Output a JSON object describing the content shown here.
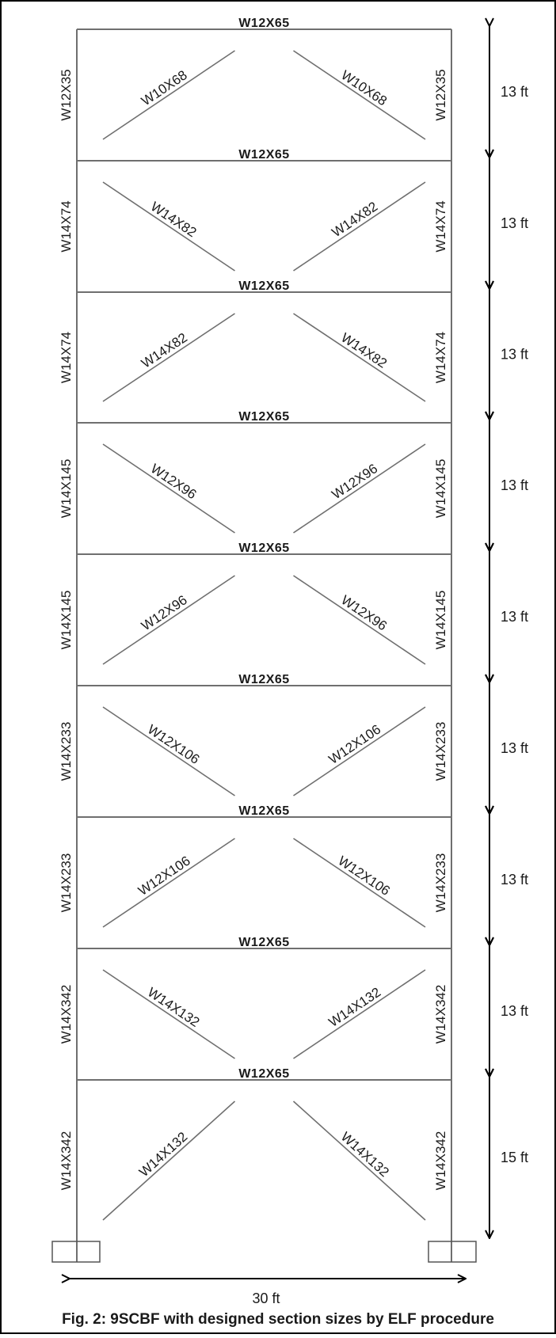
{
  "width_dimension": "30 ft",
  "caption": "Fig. 2: 9SCBF with designed section sizes by ELF procedure",
  "stories": [
    {
      "beam": "W12X65",
      "left_column": "W12X35",
      "right_column": "W12X35",
      "left_brace": "W10X68",
      "right_brace": "W10X68",
      "height": "13 ft",
      "brace_pattern": "inverted-V"
    },
    {
      "beam": "W12X65",
      "left_column": "W14X74",
      "right_column": "W14X74",
      "left_brace": "W14X82",
      "right_brace": "W14X82",
      "height": "13 ft",
      "brace_pattern": "V"
    },
    {
      "beam": "W12X65",
      "left_column": "W14X74",
      "right_column": "W14X74",
      "left_brace": "W14X82",
      "right_brace": "W14X82",
      "height": "13 ft",
      "brace_pattern": "inverted-V"
    },
    {
      "beam": "W12X65",
      "left_column": "W14X145",
      "right_column": "W14X145",
      "left_brace": "W12X96",
      "right_brace": "W12X96",
      "height": "13 ft",
      "brace_pattern": "V"
    },
    {
      "beam": "W12X65",
      "left_column": "W14X145",
      "right_column": "W14X145",
      "left_brace": "W12X96",
      "right_brace": "W12X96",
      "height": "13 ft",
      "brace_pattern": "inverted-V"
    },
    {
      "beam": "W12X65",
      "left_column": "W14X233",
      "right_column": "W14X233",
      "left_brace": "W12X106",
      "right_brace": "W12X106",
      "height": "13 ft",
      "brace_pattern": "V"
    },
    {
      "beam": "W12X65",
      "left_column": "W14X233",
      "right_column": "W14X233",
      "left_brace": "W12X106",
      "right_brace": "W12X106",
      "height": "13 ft",
      "brace_pattern": "inverted-V"
    },
    {
      "beam": "W12X65",
      "left_column": "W14X342",
      "right_column": "W14X342",
      "left_brace": "W14X132",
      "right_brace": "W14X132",
      "height": "13 ft",
      "brace_pattern": "V"
    },
    {
      "beam": "W12X65",
      "left_column": "W14X342",
      "right_column": "W14X342",
      "left_brace": "W14X132",
      "right_brace": "W14X132",
      "height": "15 ft",
      "brace_pattern": "inverted-V"
    }
  ]
}
